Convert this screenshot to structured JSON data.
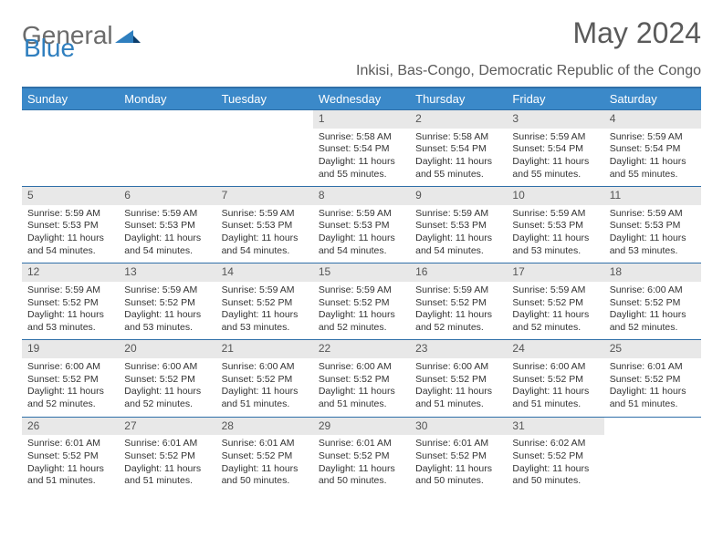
{
  "brand": {
    "part1": "General",
    "part2": "Blue"
  },
  "title": "May 2024",
  "subtitle": "Inkisi, Bas-Congo, Democratic Republic of the Congo",
  "columns": [
    "Sunday",
    "Monday",
    "Tuesday",
    "Wednesday",
    "Thursday",
    "Friday",
    "Saturday"
  ],
  "colors": {
    "header_bg": "#3b89c9",
    "header_border": "#2f6fa8",
    "daynum_bg": "#e8e8e8",
    "text": "#333333",
    "title_text": "#5a5a5a"
  },
  "weeks": [
    [
      null,
      null,
      null,
      {
        "n": "1",
        "sr": "5:58 AM",
        "ss": "5:54 PM",
        "dl": "11 hours and 55 minutes."
      },
      {
        "n": "2",
        "sr": "5:58 AM",
        "ss": "5:54 PM",
        "dl": "11 hours and 55 minutes."
      },
      {
        "n": "3",
        "sr": "5:59 AM",
        "ss": "5:54 PM",
        "dl": "11 hours and 55 minutes."
      },
      {
        "n": "4",
        "sr": "5:59 AM",
        "ss": "5:54 PM",
        "dl": "11 hours and 55 minutes."
      }
    ],
    [
      {
        "n": "5",
        "sr": "5:59 AM",
        "ss": "5:53 PM",
        "dl": "11 hours and 54 minutes."
      },
      {
        "n": "6",
        "sr": "5:59 AM",
        "ss": "5:53 PM",
        "dl": "11 hours and 54 minutes."
      },
      {
        "n": "7",
        "sr": "5:59 AM",
        "ss": "5:53 PM",
        "dl": "11 hours and 54 minutes."
      },
      {
        "n": "8",
        "sr": "5:59 AM",
        "ss": "5:53 PM",
        "dl": "11 hours and 54 minutes."
      },
      {
        "n": "9",
        "sr": "5:59 AM",
        "ss": "5:53 PM",
        "dl": "11 hours and 54 minutes."
      },
      {
        "n": "10",
        "sr": "5:59 AM",
        "ss": "5:53 PM",
        "dl": "11 hours and 53 minutes."
      },
      {
        "n": "11",
        "sr": "5:59 AM",
        "ss": "5:53 PM",
        "dl": "11 hours and 53 minutes."
      }
    ],
    [
      {
        "n": "12",
        "sr": "5:59 AM",
        "ss": "5:52 PM",
        "dl": "11 hours and 53 minutes."
      },
      {
        "n": "13",
        "sr": "5:59 AM",
        "ss": "5:52 PM",
        "dl": "11 hours and 53 minutes."
      },
      {
        "n": "14",
        "sr": "5:59 AM",
        "ss": "5:52 PM",
        "dl": "11 hours and 53 minutes."
      },
      {
        "n": "15",
        "sr": "5:59 AM",
        "ss": "5:52 PM",
        "dl": "11 hours and 52 minutes."
      },
      {
        "n": "16",
        "sr": "5:59 AM",
        "ss": "5:52 PM",
        "dl": "11 hours and 52 minutes."
      },
      {
        "n": "17",
        "sr": "5:59 AM",
        "ss": "5:52 PM",
        "dl": "11 hours and 52 minutes."
      },
      {
        "n": "18",
        "sr": "6:00 AM",
        "ss": "5:52 PM",
        "dl": "11 hours and 52 minutes."
      }
    ],
    [
      {
        "n": "19",
        "sr": "6:00 AM",
        "ss": "5:52 PM",
        "dl": "11 hours and 52 minutes."
      },
      {
        "n": "20",
        "sr": "6:00 AM",
        "ss": "5:52 PM",
        "dl": "11 hours and 52 minutes."
      },
      {
        "n": "21",
        "sr": "6:00 AM",
        "ss": "5:52 PM",
        "dl": "11 hours and 51 minutes."
      },
      {
        "n": "22",
        "sr": "6:00 AM",
        "ss": "5:52 PM",
        "dl": "11 hours and 51 minutes."
      },
      {
        "n": "23",
        "sr": "6:00 AM",
        "ss": "5:52 PM",
        "dl": "11 hours and 51 minutes."
      },
      {
        "n": "24",
        "sr": "6:00 AM",
        "ss": "5:52 PM",
        "dl": "11 hours and 51 minutes."
      },
      {
        "n": "25",
        "sr": "6:01 AM",
        "ss": "5:52 PM",
        "dl": "11 hours and 51 minutes."
      }
    ],
    [
      {
        "n": "26",
        "sr": "6:01 AM",
        "ss": "5:52 PM",
        "dl": "11 hours and 51 minutes."
      },
      {
        "n": "27",
        "sr": "6:01 AM",
        "ss": "5:52 PM",
        "dl": "11 hours and 51 minutes."
      },
      {
        "n": "28",
        "sr": "6:01 AM",
        "ss": "5:52 PM",
        "dl": "11 hours and 50 minutes."
      },
      {
        "n": "29",
        "sr": "6:01 AM",
        "ss": "5:52 PM",
        "dl": "11 hours and 50 minutes."
      },
      {
        "n": "30",
        "sr": "6:01 AM",
        "ss": "5:52 PM",
        "dl": "11 hours and 50 minutes."
      },
      {
        "n": "31",
        "sr": "6:02 AM",
        "ss": "5:52 PM",
        "dl": "11 hours and 50 minutes."
      },
      null
    ]
  ],
  "labels": {
    "sunrise": "Sunrise: ",
    "sunset": "Sunset: ",
    "daylight": "Daylight: "
  }
}
